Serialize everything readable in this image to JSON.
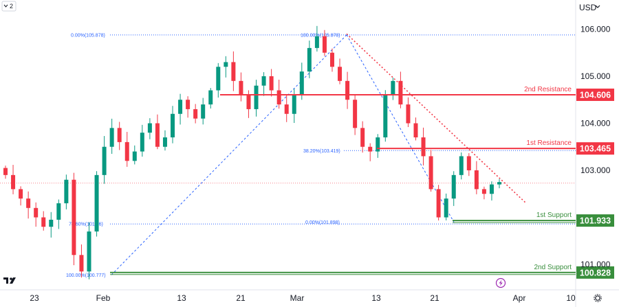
{
  "toolbar": {
    "collapse_label": "2",
    "currency": "USD"
  },
  "icons": {
    "currency_menu": "chevron-down-icon",
    "settings": "gear-icon",
    "logo": "tradingview-logo",
    "lightning": "lightning-icon"
  },
  "colors": {
    "resistance": "#f23645",
    "support": "#089981",
    "support_line": "#388e3c",
    "fib": "#2962ff",
    "up_candle": "#089981",
    "down_candle": "#f23645"
  },
  "chart_data": {
    "type": "candlestick",
    "currency": "USD",
    "ylim": [
      100.46,
      106.62
    ],
    "y_ticks": [
      "106.000",
      "105.000",
      "104.000",
      "103.000",
      "101.000"
    ],
    "x_ticks": [
      "23",
      "Feb",
      "13",
      "21",
      "Mar",
      "13",
      "21",
      "Apr",
      "10"
    ],
    "levels": [
      {
        "label": "2nd Resistance",
        "value": "104.606",
        "kind": "resistance"
      },
      {
        "label": "1st Resistance",
        "value": "103.465",
        "kind": "resistance"
      },
      {
        "label": "1st Support",
        "value": "101.933",
        "kind": "support"
      },
      {
        "label": "2nd Support",
        "value": "100.828",
        "kind": "support"
      }
    ],
    "fibonacci": [
      {
        "label": "0.00%(105.878)",
        "value": 105.878
      },
      {
        "label": "100.00%(105.878)",
        "value": 105.878
      },
      {
        "label": "38.20%(103.419)",
        "value": 103.419
      },
      {
        "label": "78.60%(101.86)",
        "value": 101.86
      },
      {
        "label": "0.00%(101.898)",
        "value": 101.898
      },
      {
        "label": "100.00%(100.777)",
        "value": 100.777
      }
    ],
    "current_price_line": 102.73,
    "candles_approx_close": [
      102.9,
      102.6,
      102.4,
      102.2,
      102.0,
      101.8,
      101.95,
      102.3,
      102.8,
      101.2,
      100.85,
      101.7,
      102.9,
      103.5,
      103.9,
      103.6,
      103.2,
      103.4,
      103.8,
      104.0,
      103.5,
      103.7,
      104.2,
      104.5,
      104.3,
      104.1,
      104.4,
      104.7,
      105.2,
      105.3,
      104.9,
      104.6,
      104.3,
      104.8,
      105.0,
      104.7,
      104.4,
      104.2,
      104.6,
      105.1,
      105.6,
      105.85,
      105.5,
      105.2,
      104.9,
      104.5,
      103.9,
      103.5,
      103.4,
      103.7,
      104.6,
      104.9,
      104.4,
      104.0,
      103.7,
      103.3,
      102.6,
      102.0,
      102.4,
      102.9,
      103.3,
      103.0,
      102.6,
      102.5,
      102.7,
      102.75
    ]
  }
}
